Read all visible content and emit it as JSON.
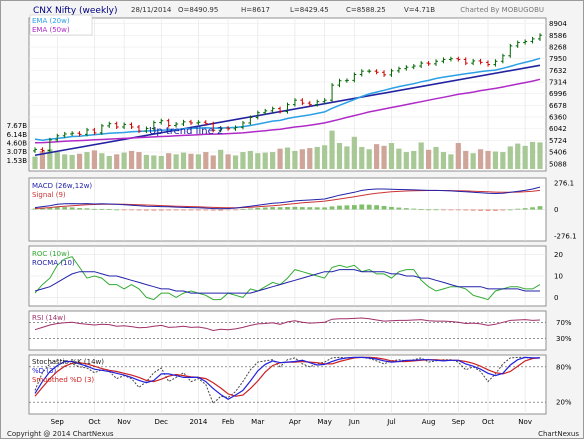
{
  "header": {
    "symbol": "CNX Nifty (weekly)",
    "date": "28/11/2014",
    "open": "O=8490.95",
    "high": "H=8617",
    "low": "L=8429.45",
    "close": "C=8588.25",
    "volume": "V=4.71B",
    "charted_by": "Charted By MOBUGOBU"
  },
  "footer": {
    "copyright": "Copyright @ 2014 ChartNexus",
    "brand": "ChartNexus"
  },
  "annotation": "Up trend line 2",
  "colors": {
    "ema20": "#2aa0e6",
    "ema50": "#b02ac8",
    "trendline": "#2222a0",
    "up": "#006600",
    "down": "#cc0000",
    "macd": "#2222aa",
    "signal": "#cc3333",
    "roc": "#33aa33",
    "rocma": "#2222aa",
    "rsi": "#a0306a",
    "stoch_k": "#444444",
    "stoch_d": "#2222dd",
    "stoch_smooth": "#cc2222"
  },
  "chart_data": [
    {
      "type": "candlestick",
      "title": "CNX Nifty (weekly)",
      "legend": [
        "EMA (20w)",
        "EMA (50w)"
      ],
      "annotation": "Up trend line 2",
      "price_ticks": [
        "8904",
        "8586",
        "8268",
        "7950",
        "7632",
        "7314",
        "6996",
        "6678",
        "6360",
        "6042",
        "5724",
        "5406",
        "5088"
      ],
      "ylim": [
        5000,
        8950
      ],
      "volume_ticks": [
        "7.67B",
        "6.14B",
        "4.60B",
        "3.07B",
        "1.53B"
      ],
      "volume_ylim": [
        0,
        8.5
      ],
      "x_labels": [
        "Sep",
        "Oct",
        "Nov",
        "Dec",
        "2014",
        "Feb",
        "Mar",
        "Apr",
        "May",
        "Jun",
        "Jul",
        "Aug",
        "Sep",
        "Oct",
        "Nov"
      ],
      "x_label_weeks": [
        3,
        8,
        12,
        17,
        22,
        26,
        30,
        35,
        39,
        43,
        48,
        53,
        57,
        61,
        66
      ],
      "close": [
        5480,
        5450,
        5740,
        5850,
        5900,
        5920,
        5890,
        6010,
        5930,
        6120,
        6180,
        6090,
        6160,
        6090,
        5980,
        6050,
        6210,
        6260,
        6130,
        6170,
        6230,
        6200,
        6220,
        6180,
        6000,
        6060,
        6040,
        6080,
        6200,
        6350,
        6480,
        6530,
        6590,
        6510,
        6700,
        6820,
        6740,
        6700,
        6780,
        6820,
        7230,
        7350,
        7360,
        7520,
        7610,
        7610,
        7580,
        7510,
        7620,
        7680,
        7720,
        7750,
        7830,
        7810,
        7880,
        7930,
        7950,
        7930,
        7830,
        7890,
        7850,
        7790,
        7880,
        8030,
        8300,
        8390,
        8420,
        8490,
        8590
      ],
      "ema20": [
        5760,
        5730,
        5760,
        5780,
        5800,
        5830,
        5840,
        5860,
        5880,
        5900,
        5920,
        5930,
        5940,
        5960,
        5970,
        5980,
        5990,
        6000,
        6010,
        6020,
        6040,
        6050,
        6060,
        6070,
        6060,
        6060,
        6070,
        6080,
        6100,
        6130,
        6170,
        6210,
        6250,
        6270,
        6320,
        6360,
        6390,
        6420,
        6460,
        6500,
        6600,
        6680,
        6760,
        6840,
        6920,
        6990,
        7040,
        7090,
        7140,
        7190,
        7230,
        7270,
        7320,
        7360,
        7410,
        7450,
        7480,
        7510,
        7540,
        7570,
        7600,
        7620,
        7640,
        7690,
        7740,
        7800,
        7850,
        7900,
        7960
      ],
      "ema50": [
        5660,
        5665,
        5675,
        5690,
        5700,
        5710,
        5720,
        5730,
        5740,
        5750,
        5760,
        5770,
        5780,
        5790,
        5800,
        5810,
        5820,
        5830,
        5840,
        5850,
        5860,
        5870,
        5880,
        5890,
        5895,
        5900,
        5910,
        5920,
        5930,
        5950,
        5970,
        5990,
        6010,
        6030,
        6060,
        6090,
        6110,
        6140,
        6170,
        6200,
        6250,
        6300,
        6350,
        6400,
        6450,
        6500,
        6540,
        6580,
        6620,
        6660,
        6700,
        6740,
        6780,
        6820,
        6860,
        6900,
        6940,
        6980,
        7010,
        7040,
        7080,
        7110,
        7140,
        7180,
        7220,
        7260,
        7300,
        7340,
        7390
      ],
      "trendline": [
        [
          0,
          5320
        ],
        [
          68,
          7770
        ]
      ],
      "volume": [
        2.2,
        3.2,
        3.5,
        3.0,
        2.6,
        2.5,
        2.7,
        3.0,
        3.3,
        2.8,
        2.3,
        2.6,
        2.9,
        3.2,
        3.0,
        2.5,
        2.4,
        2.3,
        2.8,
        2.6,
        2.9,
        2.7,
        2.6,
        3.0,
        2.4,
        3.4,
        2.6,
        2.4,
        3.0,
        3.2,
        2.8,
        2.9,
        3.0,
        3.6,
        3.8,
        3.2,
        3.5,
        3.7,
        3.9,
        4.2,
        6.8,
        4.6,
        4.0,
        5.7,
        3.9,
        3.5,
        4.4,
        4.1,
        4.6,
        3.6,
        3.0,
        3.2,
        4.7,
        3.4,
        3.9,
        3.0,
        2.6,
        4.6,
        3.2,
        2.8,
        3.5,
        3.2,
        3.1,
        3.0,
        4.0,
        4.5,
        4.1,
        4.8,
        4.71
      ]
    },
    {
      "type": "line",
      "title": "MACD (26w,12w)",
      "series_labels": [
        "MACD (26w,12w)",
        "Signal (9)"
      ],
      "yticks": [
        "276.1",
        "0",
        "-276.1"
      ],
      "ylim": [
        -330,
        330
      ],
      "macd": [
        20,
        30,
        40,
        55,
        60,
        62,
        60,
        62,
        58,
        60,
        58,
        55,
        50,
        45,
        40,
        35,
        32,
        30,
        28,
        25,
        22,
        20,
        18,
        15,
        10,
        8,
        10,
        15,
        25,
        35,
        45,
        55,
        65,
        70,
        80,
        90,
        95,
        100,
        105,
        110,
        130,
        150,
        165,
        180,
        200,
        210,
        215,
        215,
        212,
        210,
        208,
        205,
        203,
        200,
        200,
        198,
        195,
        190,
        185,
        180,
        175,
        170,
        168,
        170,
        180,
        190,
        200,
        215,
        235
      ],
      "signal": [
        10,
        15,
        20,
        28,
        35,
        40,
        45,
        50,
        52,
        54,
        55,
        55,
        54,
        52,
        50,
        47,
        44,
        41,
        38,
        35,
        32,
        30,
        28,
        25,
        22,
        20,
        18,
        18,
        20,
        24,
        28,
        34,
        40,
        46,
        54,
        62,
        70,
        76,
        82,
        88,
        98,
        110,
        122,
        134,
        147,
        160,
        170,
        178,
        185,
        190,
        194,
        196,
        198,
        199,
        199,
        199,
        198,
        197,
        195,
        192,
        189,
        185,
        182,
        180,
        180,
        182,
        186,
        192,
        200
      ],
      "histogram": [
        10,
        15,
        20,
        27,
        25,
        22,
        15,
        12,
        6,
        6,
        3,
        0,
        -4,
        -7,
        -10,
        -12,
        -12,
        -11,
        -10,
        -10,
        -10,
        -10,
        -10,
        -10,
        -12,
        -12,
        -8,
        -3,
        5,
        11,
        17,
        21,
        25,
        24,
        26,
        28,
        25,
        24,
        23,
        22,
        32,
        40,
        43,
        46,
        53,
        50,
        45,
        37,
        27,
        20,
        14,
        9,
        5,
        1,
        1,
        -1,
        -3,
        -7,
        -10,
        -12,
        -14,
        -15,
        -14,
        -10,
        0,
        8,
        14,
        23,
        35
      ]
    },
    {
      "type": "line",
      "title": "ROC (10w)",
      "series_labels": [
        "ROC (10w)",
        "ROCMA (10)"
      ],
      "yticks": [
        "20",
        "10",
        "0"
      ],
      "ylim": [
        -4,
        24
      ],
      "roc": [
        2,
        6,
        9,
        15,
        18,
        19,
        14,
        9,
        10,
        9,
        6,
        6,
        4,
        6,
        4,
        0,
        -1,
        2,
        2,
        0,
        2,
        3,
        2,
        1,
        -1,
        -1,
        2,
        1,
        0,
        4,
        3,
        5,
        7,
        6,
        9,
        13,
        12,
        11,
        10,
        9,
        14,
        15,
        14,
        15,
        12,
        13,
        11,
        11,
        9,
        12,
        13,
        13,
        8,
        5,
        3,
        4,
        5,
        5,
        4,
        1,
        0,
        -1,
        3,
        4,
        5,
        5,
        4,
        4,
        6
      ],
      "rocma": [
        3,
        4,
        5,
        7,
        9,
        11,
        12,
        12,
        12,
        11,
        10,
        10,
        9,
        8,
        7,
        6,
        5,
        4,
        4,
        3,
        3,
        2,
        2,
        2,
        2,
        2,
        2,
        2,
        2,
        2,
        3,
        4,
        5,
        6,
        7,
        8,
        9,
        10,
        11,
        12,
        12,
        13,
        13,
        13,
        12,
        12,
        12,
        12,
        11,
        11,
        10,
        10,
        9,
        9,
        8,
        7,
        6,
        5,
        5,
        5,
        5,
        4,
        4,
        4,
        4,
        4,
        3,
        3,
        3
      ]
    },
    {
      "type": "line",
      "title": "RSI (14w)",
      "yticks": [
        "70%",
        "30%"
      ],
      "ylim": [
        0,
        100
      ],
      "rsi": [
        52,
        58,
        64,
        68,
        70,
        71,
        68,
        66,
        64,
        66,
        65,
        61,
        62,
        60,
        57,
        58,
        61,
        63,
        58,
        59,
        61,
        58,
        59,
        56,
        50,
        53,
        52,
        54,
        58,
        63,
        67,
        68,
        70,
        66,
        72,
        75,
        71,
        69,
        70,
        71,
        79,
        80,
        80,
        81,
        82,
        80,
        77,
        74,
        75,
        76,
        76,
        77,
        78,
        75,
        74,
        74,
        73,
        71,
        68,
        69,
        67,
        63,
        66,
        71,
        76,
        77,
        78,
        76,
        77
      ]
    },
    {
      "type": "line",
      "title": "Stochastic %K (14w)",
      "series_labels": [
        "Stochastic %K (14w)",
        "%D (3)",
        "Smoothed %D (3)"
      ],
      "yticks": [
        "80%",
        "20%"
      ],
      "ylim": [
        0,
        100
      ],
      "k": [
        40,
        70,
        85,
        92,
        90,
        85,
        80,
        78,
        70,
        75,
        72,
        60,
        65,
        60,
        45,
        55,
        70,
        78,
        55,
        62,
        70,
        55,
        60,
        50,
        18,
        30,
        28,
        38,
        55,
        75,
        88,
        90,
        92,
        80,
        92,
        95,
        85,
        80,
        85,
        88,
        95,
        96,
        95,
        96,
        96,
        94,
        90,
        85,
        90,
        92,
        90,
        92,
        95,
        88,
        90,
        92,
        92,
        88,
        75,
        80,
        72,
        55,
        68,
        85,
        95,
        96,
        96,
        94,
        96
      ],
      "d": [
        35,
        55,
        72,
        82,
        89,
        89,
        85,
        81,
        76,
        74,
        72,
        69,
        66,
        62,
        57,
        53,
        57,
        68,
        68,
        65,
        62,
        62,
        62,
        55,
        43,
        33,
        25,
        32,
        40,
        56,
        73,
        84,
        90,
        87,
        88,
        89,
        91,
        87,
        83,
        84,
        89,
        93,
        95,
        96,
        96,
        95,
        93,
        90,
        88,
        89,
        91,
        91,
        92,
        92,
        91,
        90,
        91,
        91,
        85,
        81,
        76,
        69,
        65,
        69,
        83,
        92,
        96,
        95,
        95
      ],
      "smoothed_d": [
        30,
        45,
        60,
        72,
        81,
        86,
        87,
        85,
        81,
        77,
        74,
        72,
        69,
        66,
        62,
        57,
        55,
        59,
        64,
        67,
        65,
        63,
        62,
        60,
        53,
        44,
        34,
        30,
        32,
        43,
        56,
        71,
        82,
        87,
        88,
        88,
        89,
        88,
        87,
        85,
        85,
        89,
        92,
        95,
        96,
        96,
        95,
        93,
        90,
        89,
        89,
        90,
        91,
        92,
        92,
        91,
        91,
        91,
        89,
        86,
        81,
        75,
        70,
        68,
        72,
        81,
        90,
        94,
        95
      ]
    }
  ]
}
